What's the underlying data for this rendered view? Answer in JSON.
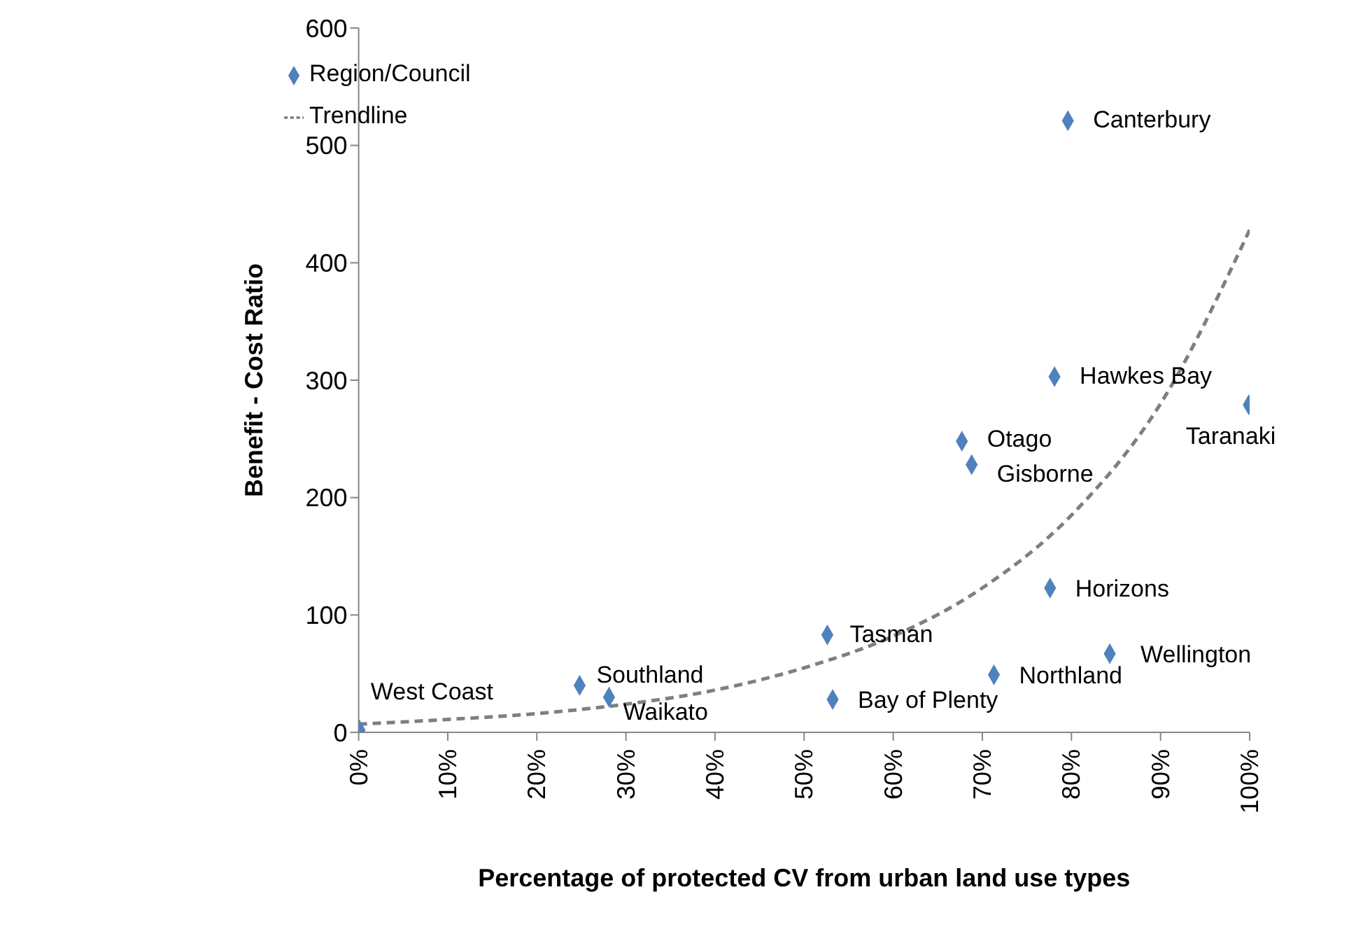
{
  "chart_data": {
    "type": "scatter",
    "xlabel": "Percentage of protected CV from urban land use types",
    "ylabel": "Benefit - Cost Ratio",
    "xlim": [
      0,
      100
    ],
    "xticks": [
      {
        "value": 0,
        "label": "0%"
      },
      {
        "value": 10,
        "label": "10%"
      },
      {
        "value": 20,
        "label": "20%"
      },
      {
        "value": 30,
        "label": "30%"
      },
      {
        "value": 40,
        "label": "40%"
      },
      {
        "value": 50,
        "label": "50%"
      },
      {
        "value": 60,
        "label": "60%"
      },
      {
        "value": 70,
        "label": "70%"
      },
      {
        "value": 80,
        "label": "80%"
      },
      {
        "value": 90,
        "label": "90%"
      },
      {
        "value": 100,
        "label": "100%"
      }
    ],
    "ylim": [
      0,
      600
    ],
    "yticks": [
      0,
      100,
      200,
      300,
      400,
      500,
      600
    ],
    "grid": false,
    "legend": "top left",
    "series": [
      {
        "name": "Region/Council",
        "color": "#4f81bd",
        "marker": "diamond",
        "x": [
          0.1,
          24.8,
          28.1,
          52.6,
          53.2,
          67.7,
          68.8,
          71.3,
          77.6,
          78.1,
          79.6,
          84.3,
          99.9
        ],
        "values": [
          2,
          40,
          30,
          83,
          28,
          248,
          228,
          49,
          123,
          303,
          521,
          67,
          279
        ]
      },
      {
        "name": "Trendline",
        "type": "line",
        "color": "#7f7f7f",
        "marker": "none",
        "line_style": "dashed",
        "x": [
          0,
          10,
          20,
          30,
          40,
          50,
          60,
          70,
          80,
          90,
          100
        ],
        "values": [
          7,
          11,
          16,
          24,
          36,
          55,
          82,
          123,
          185,
          280,
          428
        ]
      }
    ],
    "annotations": [
      {
        "text": "West Coast",
        "x": 0.1,
        "y": 2
      },
      {
        "text": "Southland",
        "x": 24.8,
        "y": 40
      },
      {
        "text": "Waikato",
        "x": 28.1,
        "y": 30
      },
      {
        "text": "Tasman",
        "x": 52.6,
        "y": 83
      },
      {
        "text": "Bay of Plenty",
        "x": 53.2,
        "y": 28
      },
      {
        "text": "Otago",
        "x": 67.7,
        "y": 248
      },
      {
        "text": "Gisborne",
        "x": 68.8,
        "y": 228
      },
      {
        "text": "Northland",
        "x": 71.3,
        "y": 49
      },
      {
        "text": "Horizons",
        "x": 77.6,
        "y": 123
      },
      {
        "text": "Hawkes Bay",
        "x": 78.1,
        "y": 303
      },
      {
        "text": "Canterbury",
        "x": 79.6,
        "y": 521
      },
      {
        "text": "Wellington",
        "x": 84.3,
        "y": 67
      },
      {
        "text": "Taranaki",
        "x": 99.9,
        "y": 279
      }
    ]
  }
}
